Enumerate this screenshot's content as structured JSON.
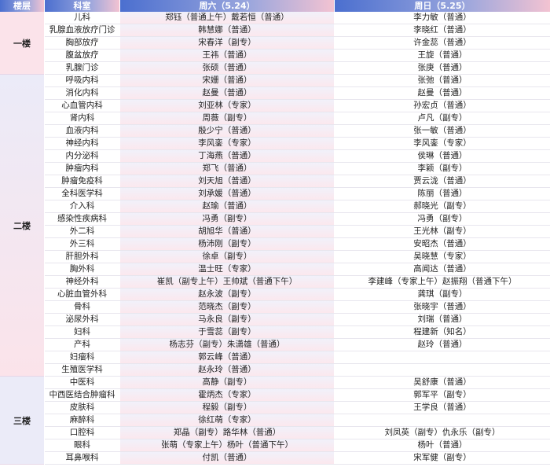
{
  "header": {
    "floor": "楼层",
    "dept": "科室",
    "sat": "周六（5.24）",
    "sun": "周日（5.25）"
  },
  "colors": {
    "header_start": "#4b6fcf",
    "header_end": "#f3c3d2",
    "floor1_bg": "#fbe3ea",
    "floor3_bg": "#ebebf8"
  },
  "floors": [
    {
      "name": "一楼",
      "rows": [
        {
          "dept": "儿科",
          "sat": "郑钰（普通上午）戴若恒（普通）",
          "sun": "李力敏（普通）"
        },
        {
          "dept": "乳腺血液放疗门诊",
          "sat": "韩慧娜（普通）",
          "sun": "李晓红（普通）"
        },
        {
          "dept": "胸部放疗",
          "sat": "宋春洋（副专）",
          "sun": "许金蕊（普通）"
        },
        {
          "dept": "腹盆放疗",
          "sat": "王祎（普通）",
          "sun": "王旋（普通）"
        },
        {
          "dept": "乳腺门诊",
          "sat": "张硕（普通）",
          "sun": "张庚（普通）"
        }
      ]
    },
    {
      "name": "二楼",
      "rows": [
        {
          "dept": "呼吸内科",
          "sat": "宋姗（普通）",
          "sun": "张弛（普通）"
        },
        {
          "dept": "消化内科",
          "sat": "赵曼（普通）",
          "sun": "赵曼（普通）"
        },
        {
          "dept": "心血管内科",
          "sat": "刘亚林（专家）",
          "sun": "孙宏贞（普通）"
        },
        {
          "dept": "肾内科",
          "sat": "周薇（副专）",
          "sun": "卢凡（副专）"
        },
        {
          "dept": "血液内科",
          "sat": "殷少宁（普通）",
          "sun": "张一敏（普通）"
        },
        {
          "dept": "神经内科",
          "sat": "李风銮（专家）",
          "sun": "李风銮（专家）"
        },
        {
          "dept": "内分泌科",
          "sat": "丁海燕（普通）",
          "sun": "侯琳（普通）"
        },
        {
          "dept": "肿瘤内科",
          "sat": "郑飞（普通）",
          "sun": "李颖（副专）"
        },
        {
          "dept": "肿瘤免疫科",
          "sat": "刘天旭（普通）",
          "sun": "贾云泷（普通）"
        },
        {
          "dept": "全科医学科",
          "sat": "刘承媛（普通）",
          "sun": "陈丽（普通）"
        },
        {
          "dept": "介入科",
          "sat": "赵瑜（普通）",
          "sun": "郝晓光（副专）"
        },
        {
          "dept": "感染性疾病科",
          "sat": "冯勇（副专）",
          "sun": "冯勇（副专）"
        },
        {
          "dept": "外二科",
          "sat": "胡旭华（普通）",
          "sun": "王光林（副专）"
        },
        {
          "dept": "外三科",
          "sat": "杨沛刚（副专）",
          "sun": "安昭杰（普通）"
        },
        {
          "dept": "肝胆外科",
          "sat": "徐卓（副专）",
          "sun": "吴晓慧（专家）"
        },
        {
          "dept": "胸外科",
          "sat": "温士旺（专家）",
          "sun": "高闻达（普通）"
        },
        {
          "dept": "神经外科",
          "sat": "崔凯（副专上午）王帅斌（普通下午）",
          "sun": "李建峰（专家上午）赵振翔（普通下午）"
        },
        {
          "dept": "心脏血管外科",
          "sat": "赵永波（副专）",
          "sun": "龚琪（副专）"
        },
        {
          "dept": "骨科",
          "sat": "范晓杰（副专）",
          "sun": "张晓宇（普通）"
        },
        {
          "dept": "泌尿外科",
          "sat": "马永良（副专）",
          "sun": "刘瑞（普通）"
        },
        {
          "dept": "妇科",
          "sat": "于雪蕊（副专）",
          "sun": "程建新（知名）"
        },
        {
          "dept": "产科",
          "sat": "杨志芬（副专）朱潇雄（普通）",
          "sun": "赵玲（普通）"
        },
        {
          "dept": "妇瘤科",
          "sat": "郭云峰（普通）",
          "sun": ""
        },
        {
          "dept": "生殖医学科",
          "sat": "赵永玲（普通）",
          "sun": ""
        }
      ]
    },
    {
      "name": "三楼",
      "rows": [
        {
          "dept": "中医科",
          "sat": "高静（副专）",
          "sun": "吴舒康（普通）"
        },
        {
          "dept": "中西医结合肿瘤科",
          "sat": "霍炳杰（专家）",
          "sun": "郭军平（副专）"
        },
        {
          "dept": "皮肤科",
          "sat": "程毅（副专）",
          "sun": "王学良（普通）"
        },
        {
          "dept": "麻醉科",
          "sat": "徐红萌（专家）",
          "sun": ""
        },
        {
          "dept": "口腔科",
          "sat": "郑晶（副专）路华林（普通）",
          "sun": "刘凤英（副专）仇永乐（副专）"
        },
        {
          "dept": "眼科",
          "sat": "张萌（专家上午）杨叶（普通下午）",
          "sun": "杨叶（普通）"
        },
        {
          "dept": "耳鼻喉科",
          "sat": "付凯（普通）",
          "sun": "宋军健（副专）"
        }
      ]
    }
  ]
}
